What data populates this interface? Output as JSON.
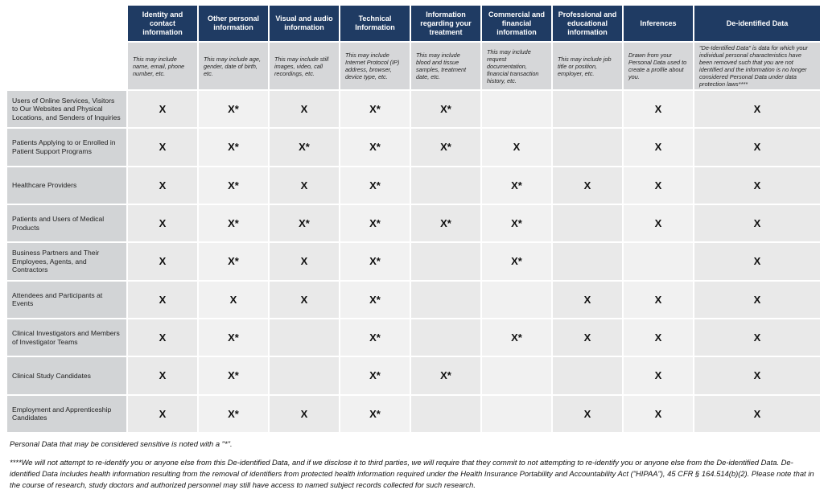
{
  "header": {
    "columns": [
      {
        "title": "Identity and contact information",
        "description": "This may include name, email, phone number, etc."
      },
      {
        "title": "Other personal information",
        "description": "This may include age, gender, date of birth, etc."
      },
      {
        "title": "Visual and audio information",
        "description": "This may include still images, video, call recordings, etc."
      },
      {
        "title": "Technical Information",
        "description": "This may include Internet Protocol (IP) address, browser, device type, etc."
      },
      {
        "title": "Information regarding your treatment",
        "description": "This may include blood and tissue samples, treatment date, etc."
      },
      {
        "title": "Commercial and financial information",
        "description": "This may include request documentation, financial transaction history, etc."
      },
      {
        "title": "Professional and educational information",
        "description": "This may include job title or position, employer, etc."
      },
      {
        "title": "Inferences",
        "description": "Drawn from your Personal Data used to create a profile about you."
      },
      {
        "title": "De-identified Data",
        "description": "\"De-Identified Data\" is data for which your individual personal characteristics have been removed such that you are not identified and the information is no longer considered Personal Data under data protection laws****"
      }
    ]
  },
  "rows": [
    {
      "label": "Users of Online Services, Visitors to Our Websites and Physical Locations, and Senders of Inquiries",
      "cells": [
        "X",
        "X*",
        "X",
        "X*",
        "X*",
        null,
        null,
        "X",
        "X"
      ]
    },
    {
      "label": "Patients Applying to or Enrolled in Patient Support Programs",
      "cells": [
        "X",
        "X*",
        "X*",
        "X*",
        "X*",
        "X",
        null,
        "X",
        "X"
      ]
    },
    {
      "label": "Healthcare Providers",
      "cells": [
        "X",
        "X*",
        "X",
        "X*",
        null,
        "X*",
        "X",
        "X",
        "X"
      ]
    },
    {
      "label": "Patients and Users of Medical Products",
      "cells": [
        "X",
        "X*",
        "X*",
        "X*",
        "X*",
        "X*",
        null,
        "X",
        "X"
      ]
    },
    {
      "label": "Business Partners and Their Employees, Agents, and Contractors",
      "cells": [
        "X",
        "X*",
        "X",
        "X*",
        null,
        "X*",
        null,
        null,
        "X"
      ]
    },
    {
      "label": "Attendees and Participants at Events",
      "cells": [
        "X",
        "X",
        "X",
        "X*",
        null,
        null,
        "X",
        "X",
        "X"
      ]
    },
    {
      "label": "Clinical Investigators and Members of Investigator Teams",
      "cells": [
        "X",
        "X*",
        null,
        "X*",
        null,
        "X*",
        "X",
        "X",
        "X"
      ]
    },
    {
      "label": "Clinical Study Candidates",
      "cells": [
        "X",
        "X*",
        null,
        "X*",
        "X*",
        null,
        null,
        "X",
        "X"
      ]
    },
    {
      "label": "Employment and Apprenticeship Candidates",
      "cells": [
        "X",
        "X*",
        "X",
        "X*",
        null,
        null,
        "X",
        "X",
        "X"
      ]
    }
  ],
  "notes": [
    "Personal Data that may be considered sensitive is noted with a \"*\".",
    "****We will not attempt to re-identify you or anyone else from this De-identified Data, and if we disclose it to third parties, we will require that they commit to not attempting to re-identify you or anyone else from the De-identified Data. De-identified Data includes health information resulting from the removal of identifiers from protected health information required under the Health Insurance Portability and Accountability Act (\"HIPAA\"), 45 CFR § 164.514(b)(2). Please note that in the course of research, study doctors and authorized personnel may still have access to named subject records collected for such research."
  ]
}
